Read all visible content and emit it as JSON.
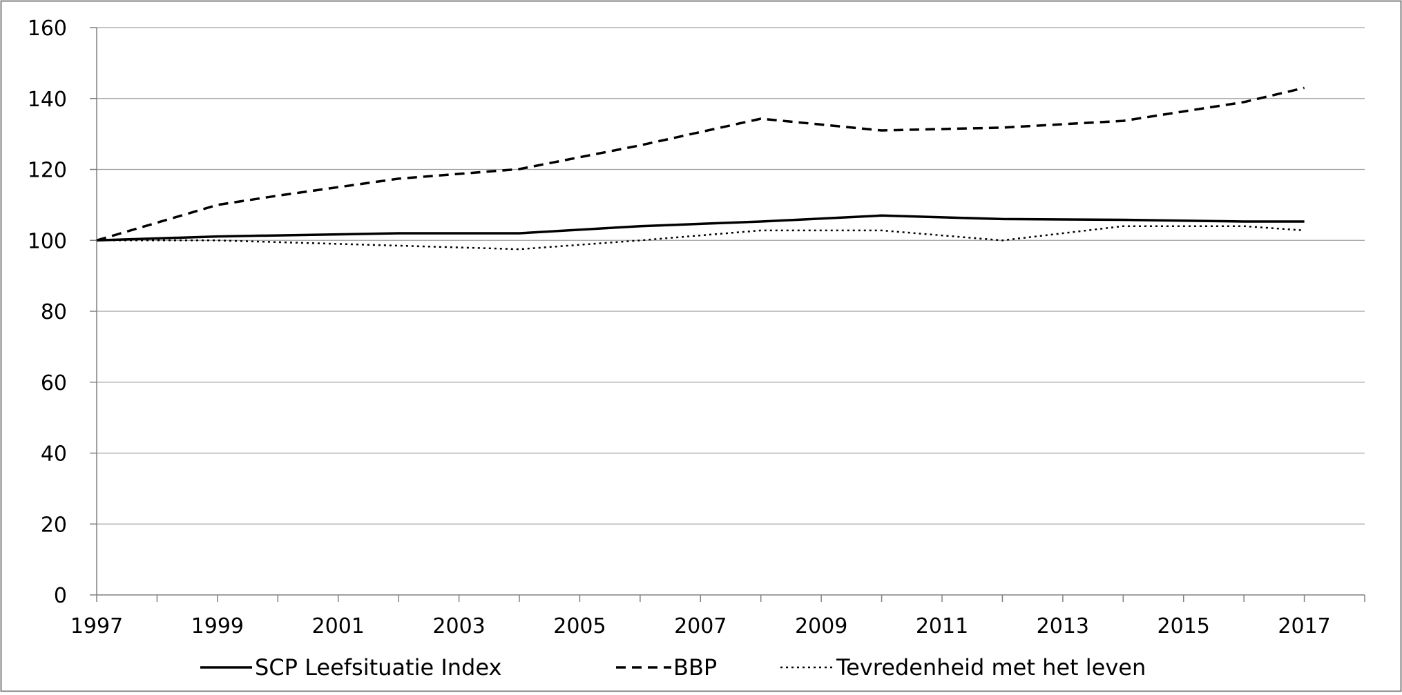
{
  "chart_data": {
    "type": "line",
    "title": "",
    "xlabel": "",
    "ylabel": "",
    "x": [
      1997,
      1998,
      1999,
      2000,
      2001,
      2002,
      2003,
      2004,
      2005,
      2006,
      2007,
      2008,
      2009,
      2010,
      2011,
      2012,
      2013,
      2014,
      2015,
      2016,
      2017
    ],
    "xticks": [
      "1997",
      "1999",
      "2001",
      "2003",
      "2005",
      "2007",
      "2009",
      "2011",
      "2013",
      "2015",
      "2017"
    ],
    "yticks": [
      "0",
      "20",
      "40",
      "60",
      "80",
      "100",
      "120",
      "140",
      "160"
    ],
    "ylim": [
      0,
      160
    ],
    "xlim": [
      1997,
      2018
    ],
    "grid": "horizontal",
    "legend_position": "bottom",
    "series": [
      {
        "name": "SCP Leefsituatie Index",
        "style": "solid",
        "x": [
          1997,
          1999,
          2002,
          2004,
          2006,
          2008,
          2010,
          2012,
          2014,
          2016,
          2017
        ],
        "values": [
          100,
          101.1,
          102,
          102,
          104,
          105.3,
          107,
          106,
          105.8,
          105.3,
          105.3
        ]
      },
      {
        "name": "BBP",
        "style": "dashed",
        "x": [
          1997,
          1999,
          2000,
          2002,
          2004,
          2006,
          2008,
          2010,
          2012,
          2014,
          2016,
          2017
        ],
        "values": [
          100,
          110,
          112.6,
          117.4,
          120.1,
          126.8,
          134.3,
          131,
          131.8,
          133.7,
          139,
          143
        ]
      },
      {
        "name": "Tevredenheid met het leven",
        "style": "dotted",
        "x": [
          1997,
          1999,
          2001,
          2004,
          2006,
          2008,
          2010,
          2012,
          2014,
          2016,
          2017
        ],
        "values": [
          100,
          100,
          99,
          97.5,
          100,
          102.8,
          102.8,
          100,
          104,
          104,
          102.8
        ]
      }
    ],
    "colors": {
      "lines": "#000000",
      "grid": "#a0a0a0",
      "axis": "#808080",
      "frame": "#808080"
    }
  }
}
